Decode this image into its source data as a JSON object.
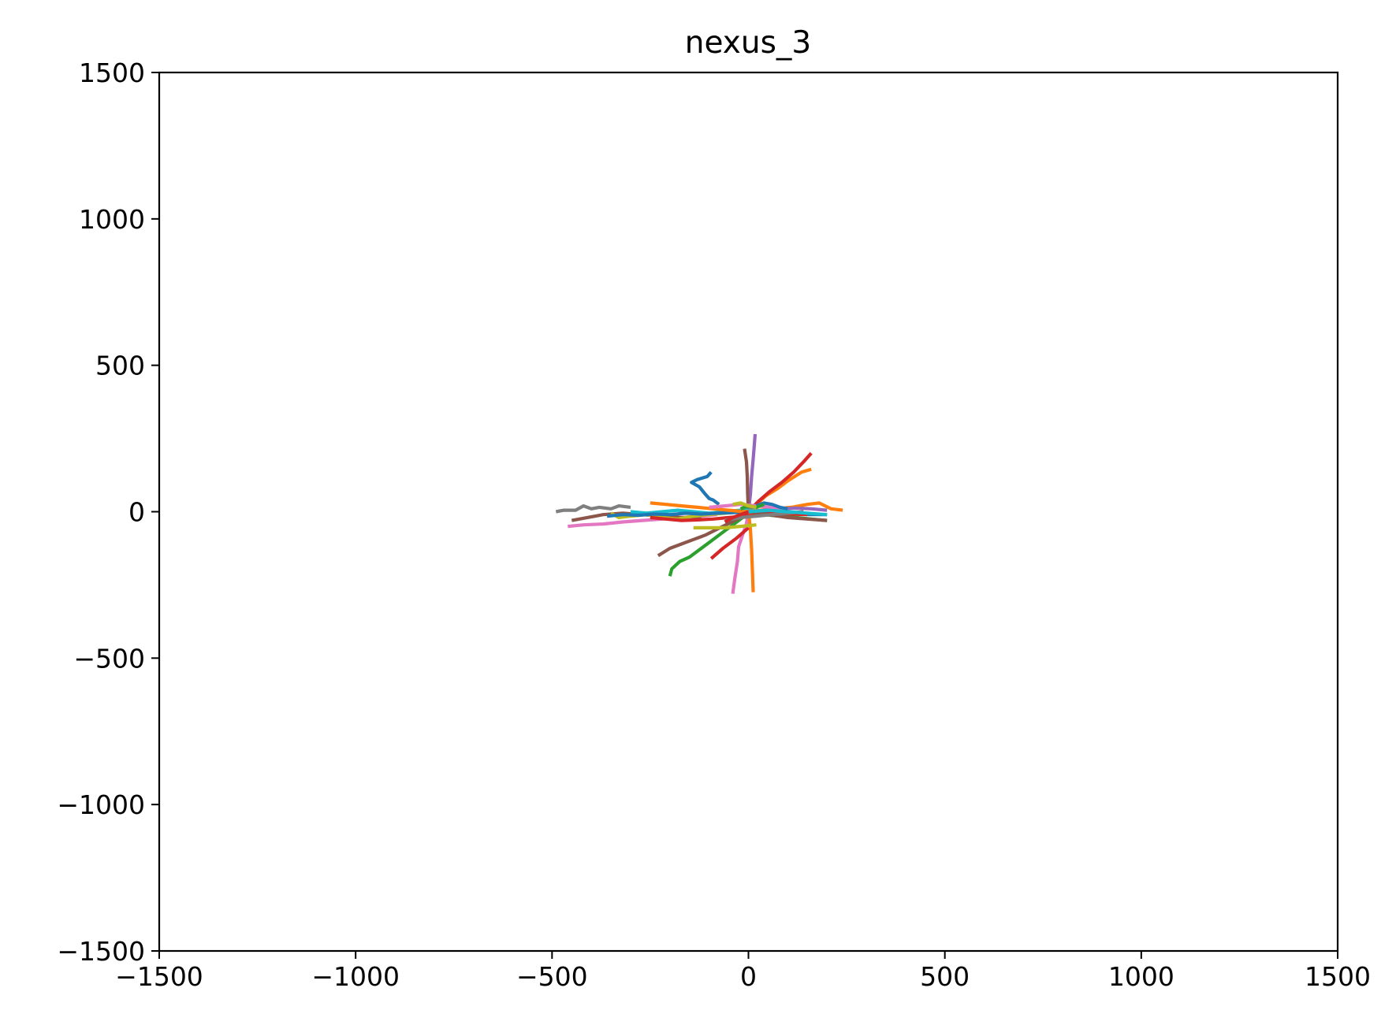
{
  "chart_data": {
    "type": "line",
    "title": "nexus_3",
    "xlabel": "",
    "ylabel": "",
    "xlim": [
      -1500,
      1500
    ],
    "ylim": [
      -1500,
      1500
    ],
    "xticks": [
      "−1500",
      "−1000",
      "−500",
      "0",
      "500",
      "1000",
      "1500"
    ],
    "yticks": [
      "−1500",
      "−1000",
      "−500",
      "0",
      "500",
      "1000",
      "1500"
    ],
    "xtick_values": [
      -1500,
      -1000,
      -500,
      0,
      500,
      1000,
      1500
    ],
    "ytick_values": [
      -1500,
      -1000,
      -500,
      0,
      500,
      1000,
      1500
    ],
    "grid": false,
    "legend": "none",
    "series": [
      {
        "color": "#1f77b4",
        "x": [
          -95,
          -105,
          -130,
          -145,
          -125,
          -110,
          -100,
          -90,
          -75
        ],
        "y": [
          135,
          120,
          110,
          100,
          85,
          60,
          45,
          40,
          25
        ]
      },
      {
        "color": "#ff7f0e",
        "x": [
          0,
          20,
          45,
          75,
          100,
          135,
          160
        ],
        "y": [
          0,
          25,
          55,
          80,
          105,
          135,
          145
        ]
      },
      {
        "color": "#2ca02c",
        "x": [
          -200,
          -195,
          -175,
          -150,
          -125,
          -95,
          -65,
          -35,
          -10,
          0
        ],
        "y": [
          -220,
          -195,
          -170,
          -155,
          -130,
          -100,
          -70,
          -40,
          -15,
          0
        ]
      },
      {
        "color": "#d62728",
        "x": [
          0,
          25,
          55,
          85,
          115,
          140,
          160
        ],
        "y": [
          0,
          35,
          70,
          100,
          135,
          170,
          200
        ]
      },
      {
        "color": "#9467bd",
        "x": [
          0,
          5,
          8,
          12,
          15,
          17
        ],
        "y": [
          0,
          60,
          120,
          180,
          230,
          265
        ]
      },
      {
        "color": "#8c564b",
        "x": [
          0,
          -2,
          -3,
          -5,
          -10
        ],
        "y": [
          0,
          60,
          120,
          170,
          215
        ]
      },
      {
        "color": "#e377c2",
        "x": [
          0,
          -5,
          -15,
          -25,
          -28,
          -35,
          -40
        ],
        "y": [
          0,
          -40,
          -80,
          -120,
          -170,
          -230,
          -280
        ]
      },
      {
        "color": "#ff7f0e",
        "x": [
          0,
          5,
          8,
          10,
          12
        ],
        "y": [
          0,
          -60,
          -130,
          -200,
          -275
        ]
      },
      {
        "color": "#d62728",
        "x": [
          -95,
          -65,
          -30,
          0
        ],
        "y": [
          -160,
          -125,
          -90,
          -55
        ]
      },
      {
        "color": "#8c564b",
        "x": [
          -230,
          -200,
          -170,
          -140,
          -110,
          -80,
          -50,
          -20,
          0
        ],
        "y": [
          -150,
          -125,
          -110,
          -95,
          -80,
          -60,
          -40,
          -20,
          0
        ]
      },
      {
        "color": "#e377c2",
        "x": [
          -460,
          -420,
          -370,
          -320,
          -270,
          -220,
          -170,
          -120,
          -80
        ],
        "y": [
          -50,
          -45,
          -42,
          -35,
          -30,
          -25,
          -20,
          -15,
          -10
        ]
      },
      {
        "color": "#7f7f7f",
        "x": [
          -490,
          -470,
          -440,
          -420,
          -400,
          -380,
          -350,
          -330,
          -300
        ],
        "y": [
          0,
          5,
          5,
          20,
          10,
          15,
          10,
          20,
          15
        ]
      },
      {
        "color": "#8c564b",
        "x": [
          -450,
          -410,
          -370,
          -320,
          -270,
          -220,
          -170,
          -120
        ],
        "y": [
          -30,
          -20,
          -10,
          -5,
          -10,
          -15,
          -20,
          -25
        ]
      },
      {
        "color": "#bcbd22",
        "x": [
          -350,
          -330,
          -300,
          -260,
          -220,
          -180,
          -140,
          -100,
          -60,
          -20
        ],
        "y": [
          -5,
          -20,
          -15,
          -10,
          -20,
          -25,
          -15,
          -10,
          -5,
          0
        ]
      },
      {
        "color": "#17becf",
        "x": [
          -300,
          -260,
          -220,
          -180,
          -140,
          -100,
          -60,
          -20,
          20,
          60
        ],
        "y": [
          0,
          -5,
          0,
          5,
          0,
          -5,
          0,
          5,
          5,
          0
        ]
      },
      {
        "color": "#1f77b4",
        "x": [
          -360,
          -320,
          -280,
          -240,
          -200,
          -160,
          -120,
          -80,
          -40,
          0,
          40,
          80,
          120,
          160,
          200
        ],
        "y": [
          -15,
          -10,
          -12,
          -8,
          -10,
          -5,
          -8,
          -5,
          -3,
          0,
          -3,
          -5,
          -8,
          -10,
          -10
        ]
      },
      {
        "color": "#ff7f0e",
        "x": [
          -250,
          -210,
          -170,
          -130,
          -90,
          -50,
          -10,
          30,
          70,
          110,
          150,
          180,
          210,
          240
        ],
        "y": [
          30,
          25,
          20,
          15,
          10,
          5,
          0,
          5,
          10,
          15,
          25,
          30,
          10,
          5
        ]
      },
      {
        "color": "#2ca02c",
        "x": [
          0,
          40,
          80,
          120,
          160,
          200
        ],
        "y": [
          0,
          -10,
          -15,
          -20,
          -25,
          -30
        ]
      },
      {
        "color": "#d62728",
        "x": [
          -250,
          -210,
          -170,
          -130,
          -90,
          -50,
          -10,
          30,
          70,
          110,
          150
        ],
        "y": [
          -20,
          -25,
          -30,
          -28,
          -25,
          -20,
          -15,
          -10,
          -5,
          -8,
          -10
        ]
      },
      {
        "color": "#9467bd",
        "x": [
          0,
          40,
          80,
          120,
          160,
          200
        ],
        "y": [
          0,
          5,
          10,
          12,
          10,
          5
        ]
      },
      {
        "color": "#8c564b",
        "x": [
          0,
          50,
          100,
          150,
          200
        ],
        "y": [
          0,
          -10,
          -20,
          -25,
          -30
        ]
      },
      {
        "color": "#e377c2",
        "x": [
          -100,
          -60,
          -20,
          20,
          60,
          100
        ],
        "y": [
          15,
          20,
          25,
          20,
          15,
          10
        ]
      },
      {
        "color": "#7f7f7f",
        "x": [
          -60,
          -20,
          20,
          60,
          100,
          140
        ],
        "y": [
          -30,
          -20,
          -15,
          -10,
          -5,
          0
        ]
      },
      {
        "color": "#bcbd22",
        "x": [
          -140,
          -100,
          -60,
          -20,
          20
        ],
        "y": [
          -55,
          -55,
          -55,
          -50,
          -45
        ]
      },
      {
        "color": "#17becf",
        "x": [
          0,
          50,
          100,
          150,
          200
        ],
        "y": [
          0,
          5,
          0,
          -5,
          -10
        ]
      },
      {
        "color": "#1f77b4",
        "x": [
          20,
          40,
          60,
          80,
          100
        ],
        "y": [
          20,
          30,
          25,
          15,
          10
        ]
      },
      {
        "color": "#2ca02c",
        "x": [
          -20,
          0,
          20,
          40
        ],
        "y": [
          10,
          20,
          15,
          25
        ]
      },
      {
        "color": "#bcbd22",
        "x": [
          -40,
          -20,
          0,
          20
        ],
        "y": [
          25,
          30,
          20,
          15
        ]
      },
      {
        "color": "#d62728",
        "x": [
          0,
          -20,
          -40,
          -60
        ],
        "y": [
          0,
          -10,
          -20,
          -35
        ]
      }
    ]
  }
}
